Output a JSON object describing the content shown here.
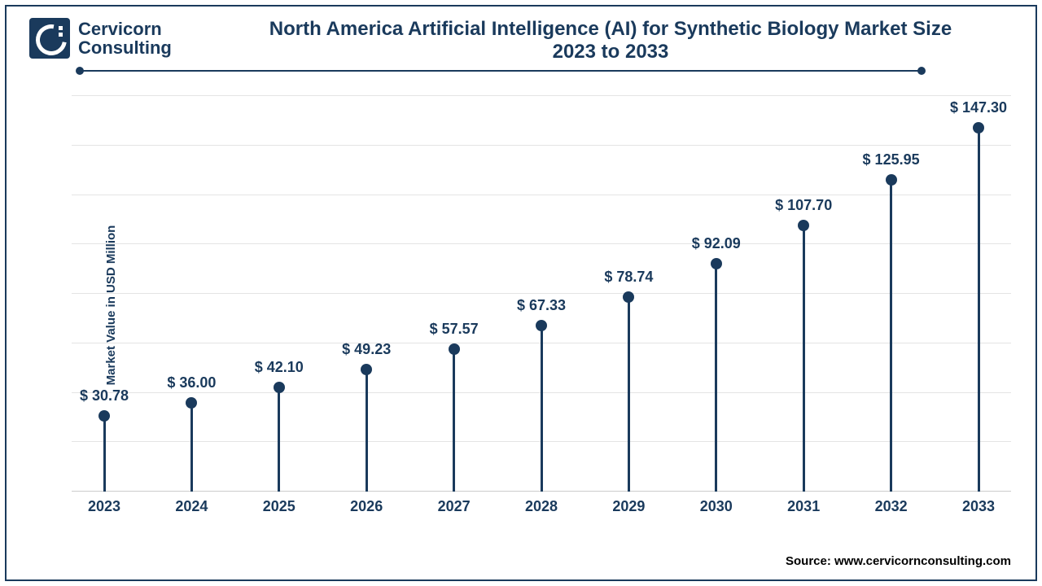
{
  "logo": {
    "line1": "Cervicorn",
    "line2": "Consulting"
  },
  "title": {
    "line1": "North America Artificial Intelligence (AI) for Synthetic Biology Market Size",
    "line2": "2023 to 2033"
  },
  "chart": {
    "type": "lollipop",
    "y_axis_label": "Market Value in USD Million",
    "ymax": 160,
    "ymin": 0,
    "grid_lines": [
      20,
      40,
      60,
      80,
      100,
      120,
      140,
      160
    ],
    "value_prefix": "$ ",
    "categories": [
      "2023",
      "2024",
      "2025",
      "2026",
      "2027",
      "2028",
      "2029",
      "2030",
      "2031",
      "2032",
      "2033"
    ],
    "values": [
      30.78,
      36.0,
      42.1,
      49.23,
      57.57,
      67.33,
      78.74,
      92.09,
      107.7,
      125.95,
      147.3
    ],
    "value_labels": [
      "30.78",
      "36.00",
      "42.10",
      "49.23",
      "57.57",
      "67.33",
      "78.74",
      "92.09",
      "107.70",
      "125.95",
      "147.30"
    ],
    "stem_color": "#1a3a5c",
    "dot_color": "#1a3a5c",
    "grid_color": "#e4e4e4",
    "background_color": "#ffffff",
    "label_fontsize": 18,
    "axis_fontsize": 18,
    "title_fontsize": 24,
    "title_color": "#1a3a5c",
    "dot_radius": 7,
    "stem_width": 3
  },
  "source": "Source: www.cervicornconsulting.com"
}
